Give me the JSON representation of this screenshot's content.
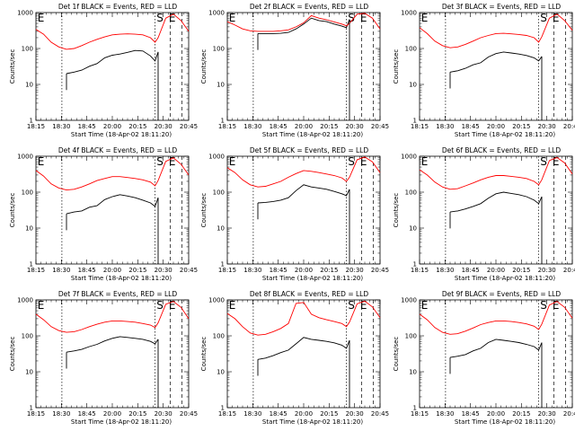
{
  "figure": {
    "xlabel": "Start Time (18-Apr-02 18:11:20)",
    "ylabel": "Counts/sec",
    "x_ticks": [
      "18:15",
      "18:30",
      "18:45",
      "20:00",
      "20:15",
      "20:30",
      "20:45"
    ],
    "y_ticks": [
      "1",
      "10",
      "100",
      "1000"
    ],
    "markers": {
      "e": "E",
      "s": "S"
    },
    "colors": {
      "events": "#000000",
      "lld": "#ff0000"
    }
  },
  "chart_data": [
    {
      "type": "line",
      "title": "Det 1f BLACK = Events, RED = LLD",
      "ylim": [
        1,
        1000
      ],
      "yscale": "log",
      "series": [
        {
          "name": "Events",
          "color": "#000000",
          "x": [
            0,
            0.05,
            0.1,
            0.2,
            0.25,
            0.3,
            0.35,
            0.4,
            0.45,
            0.5,
            0.55,
            0.6,
            0.65,
            0.7,
            0.75,
            0.78,
            0.8
          ],
          "values": [
            null,
            null,
            null,
            20,
            22,
            25,
            32,
            38,
            55,
            65,
            70,
            78,
            88,
            85,
            62,
            45,
            80
          ]
        },
        {
          "name": "LLD",
          "color": "#ff0000",
          "x": [
            0,
            0.05,
            0.1,
            0.15,
            0.2,
            0.25,
            0.3,
            0.35,
            0.4,
            0.45,
            0.5,
            0.55,
            0.6,
            0.65,
            0.7,
            0.75,
            0.78,
            0.8,
            0.85,
            0.9,
            0.95,
            1.0
          ],
          "values": [
            340,
            250,
            150,
            110,
            95,
            100,
            120,
            150,
            180,
            210,
            240,
            250,
            255,
            250,
            240,
            200,
            150,
            200,
            700,
            900,
            600,
            300
          ]
        }
      ]
    },
    {
      "type": "line",
      "title": "Det 2f BLACK = Events, RED = LLD",
      "ylim": [
        1,
        1000
      ],
      "yscale": "log",
      "series": [
        {
          "name": "Events",
          "color": "#000000",
          "x": [
            0,
            0.05,
            0.1,
            0.2,
            0.25,
            0.3,
            0.35,
            0.4,
            0.45,
            0.5,
            0.55,
            0.6,
            0.65,
            0.7,
            0.75,
            0.78,
            0.8
          ],
          "values": [
            null,
            null,
            null,
            260,
            260,
            260,
            265,
            280,
            350,
            480,
            700,
            600,
            560,
            480,
            420,
            380,
            650
          ]
        },
        {
          "name": "LLD",
          "color": "#ff0000",
          "x": [
            0,
            0.05,
            0.1,
            0.15,
            0.2,
            0.25,
            0.3,
            0.35,
            0.4,
            0.45,
            0.5,
            0.55,
            0.6,
            0.65,
            0.7,
            0.75,
            0.78,
            0.8,
            0.85,
            0.9,
            0.95,
            1.0
          ],
          "values": [
            560,
            450,
            350,
            310,
            300,
            300,
            300,
            310,
            330,
            400,
            520,
            820,
            700,
            630,
            550,
            480,
            430,
            500,
            900,
            950,
            700,
            350
          ]
        }
      ]
    },
    {
      "type": "line",
      "title": "Det 3f BLACK = Events, RED = LLD",
      "ylim": [
        1,
        1000
      ],
      "yscale": "log",
      "series": [
        {
          "name": "Events",
          "color": "#000000",
          "x": [
            0,
            0.05,
            0.1,
            0.2,
            0.25,
            0.3,
            0.35,
            0.4,
            0.45,
            0.5,
            0.55,
            0.6,
            0.65,
            0.7,
            0.75,
            0.78,
            0.8
          ],
          "values": [
            null,
            null,
            null,
            22,
            24,
            28,
            35,
            40,
            58,
            72,
            80,
            75,
            70,
            64,
            55,
            45,
            60
          ]
        },
        {
          "name": "LLD",
          "color": "#ff0000",
          "x": [
            0,
            0.05,
            0.1,
            0.15,
            0.2,
            0.25,
            0.3,
            0.35,
            0.4,
            0.45,
            0.5,
            0.55,
            0.6,
            0.65,
            0.7,
            0.75,
            0.78,
            0.8,
            0.85,
            0.9,
            0.95,
            1.0
          ],
          "values": [
            380,
            260,
            160,
            120,
            105,
            110,
            130,
            160,
            200,
            230,
            260,
            265,
            255,
            245,
            230,
            200,
            150,
            210,
            700,
            900,
            600,
            320
          ]
        }
      ]
    },
    {
      "type": "line",
      "title": "Det 4f BLACK = Events, RED = LLD",
      "ylim": [
        1,
        1000
      ],
      "yscale": "log",
      "series": [
        {
          "name": "Events",
          "color": "#000000",
          "x": [
            0,
            0.05,
            0.1,
            0.2,
            0.25,
            0.3,
            0.35,
            0.4,
            0.45,
            0.5,
            0.55,
            0.6,
            0.65,
            0.7,
            0.75,
            0.78,
            0.8
          ],
          "values": [
            null,
            null,
            null,
            25,
            28,
            30,
            38,
            42,
            62,
            75,
            85,
            78,
            70,
            60,
            50,
            40,
            70
          ]
        },
        {
          "name": "LLD",
          "color": "#ff0000",
          "x": [
            0,
            0.05,
            0.1,
            0.15,
            0.2,
            0.25,
            0.3,
            0.35,
            0.4,
            0.45,
            0.5,
            0.55,
            0.6,
            0.65,
            0.7,
            0.75,
            0.78,
            0.8,
            0.85,
            0.9,
            0.95,
            1.0
          ],
          "values": [
            400,
            280,
            170,
            130,
            115,
            120,
            140,
            170,
            210,
            240,
            270,
            270,
            255,
            240,
            220,
            190,
            150,
            210,
            720,
            900,
            600,
            300
          ]
        }
      ]
    },
    {
      "type": "line",
      "title": "Det 5f BLACK = Events, RED = LLD",
      "ylim": [
        1,
        1000
      ],
      "yscale": "log",
      "series": [
        {
          "name": "Events",
          "color": "#000000",
          "x": [
            0,
            0.05,
            0.1,
            0.2,
            0.25,
            0.3,
            0.35,
            0.4,
            0.45,
            0.5,
            0.55,
            0.6,
            0.65,
            0.7,
            0.75,
            0.78,
            0.8
          ],
          "values": [
            null,
            null,
            null,
            50,
            52,
            55,
            60,
            70,
            110,
            160,
            140,
            130,
            120,
            105,
            90,
            80,
            120
          ]
        },
        {
          "name": "LLD",
          "color": "#ff0000",
          "x": [
            0,
            0.05,
            0.1,
            0.15,
            0.2,
            0.25,
            0.3,
            0.35,
            0.4,
            0.45,
            0.5,
            0.55,
            0.6,
            0.65,
            0.7,
            0.75,
            0.78,
            0.8,
            0.85,
            0.9,
            0.95,
            1.0
          ],
          "values": [
            480,
            350,
            220,
            160,
            140,
            145,
            170,
            200,
            260,
            330,
            400,
            380,
            350,
            320,
            290,
            250,
            200,
            260,
            800,
            950,
            700,
            350
          ]
        }
      ]
    },
    {
      "type": "line",
      "title": "Det 6f BLACK = Events, RED = LLD",
      "ylim": [
        1,
        1000
      ],
      "yscale": "log",
      "series": [
        {
          "name": "Events",
          "color": "#000000",
          "x": [
            0,
            0.05,
            0.1,
            0.2,
            0.25,
            0.3,
            0.35,
            0.4,
            0.45,
            0.5,
            0.55,
            0.6,
            0.65,
            0.7,
            0.75,
            0.78,
            0.8
          ],
          "values": [
            null,
            null,
            null,
            28,
            30,
            34,
            40,
            48,
            68,
            90,
            100,
            92,
            85,
            75,
            60,
            48,
            75
          ]
        },
        {
          "name": "LLD",
          "color": "#ff0000",
          "x": [
            0,
            0.05,
            0.1,
            0.15,
            0.2,
            0.25,
            0.3,
            0.35,
            0.4,
            0.45,
            0.5,
            0.55,
            0.6,
            0.65,
            0.7,
            0.75,
            0.78,
            0.8,
            0.85,
            0.9,
            0.95,
            1.0
          ],
          "values": [
            420,
            300,
            190,
            140,
            120,
            125,
            150,
            180,
            220,
            260,
            290,
            290,
            275,
            260,
            240,
            200,
            160,
            220,
            760,
            920,
            650,
            320
          ]
        }
      ]
    },
    {
      "type": "line",
      "title": "Det 7f BLACK = Events, RED = LLD",
      "ylim": [
        1,
        1000
      ],
      "yscale": "log",
      "series": [
        {
          "name": "Events",
          "color": "#000000",
          "x": [
            0,
            0.05,
            0.1,
            0.2,
            0.25,
            0.3,
            0.35,
            0.4,
            0.45,
            0.5,
            0.55,
            0.6,
            0.65,
            0.7,
            0.75,
            0.78,
            0.8
          ],
          "values": [
            null,
            null,
            null,
            35,
            38,
            42,
            50,
            58,
            72,
            85,
            95,
            90,
            85,
            80,
            70,
            60,
            80
          ]
        },
        {
          "name": "LLD",
          "color": "#ff0000",
          "x": [
            0,
            0.05,
            0.1,
            0.15,
            0.2,
            0.25,
            0.3,
            0.35,
            0.4,
            0.45,
            0.5,
            0.55,
            0.6,
            0.65,
            0.7,
            0.75,
            0.78,
            0.8,
            0.85,
            0.9,
            0.95,
            1.0
          ],
          "values": [
            400,
            280,
            180,
            140,
            125,
            130,
            150,
            180,
            210,
            240,
            260,
            260,
            250,
            240,
            220,
            200,
            170,
            230,
            760,
            900,
            620,
            300
          ]
        }
      ]
    },
    {
      "type": "line",
      "title": "Det 8f BLACK = Events, RED = LLD",
      "ylim": [
        1,
        1000
      ],
      "yscale": "log",
      "series": [
        {
          "name": "Events",
          "color": "#000000",
          "x": [
            0,
            0.05,
            0.1,
            0.2,
            0.25,
            0.3,
            0.35,
            0.4,
            0.45,
            0.5,
            0.55,
            0.6,
            0.65,
            0.7,
            0.75,
            0.78,
            0.8
          ],
          "values": [
            null,
            null,
            null,
            22,
            24,
            28,
            34,
            40,
            60,
            90,
            80,
            75,
            70,
            64,
            55,
            45,
            75
          ]
        },
        {
          "name": "LLD",
          "color": "#ff0000",
          "x": [
            0,
            0.05,
            0.1,
            0.15,
            0.2,
            0.25,
            0.3,
            0.35,
            0.4,
            0.45,
            0.5,
            0.55,
            0.6,
            0.65,
            0.7,
            0.75,
            0.78,
            0.8,
            0.85,
            0.9,
            0.95,
            1.0
          ],
          "values": [
            420,
            300,
            180,
            120,
            105,
            110,
            130,
            160,
            220,
            800,
            850,
            400,
            320,
            280,
            250,
            220,
            180,
            240,
            780,
            920,
            640,
            320
          ]
        }
      ]
    },
    {
      "type": "line",
      "title": "Det 9f BLACK = Events, RED = LLD",
      "ylim": [
        1,
        1000
      ],
      "yscale": "log",
      "series": [
        {
          "name": "Events",
          "color": "#000000",
          "x": [
            0,
            0.05,
            0.1,
            0.2,
            0.25,
            0.3,
            0.35,
            0.4,
            0.45,
            0.5,
            0.55,
            0.6,
            0.65,
            0.7,
            0.75,
            0.78,
            0.8
          ],
          "values": [
            null,
            null,
            null,
            25,
            27,
            30,
            38,
            45,
            65,
            80,
            75,
            70,
            65,
            58,
            50,
            40,
            65
          ]
        },
        {
          "name": "LLD",
          "color": "#ff0000",
          "x": [
            0,
            0.05,
            0.1,
            0.15,
            0.2,
            0.25,
            0.3,
            0.35,
            0.4,
            0.45,
            0.5,
            0.55,
            0.6,
            0.65,
            0.7,
            0.75,
            0.78,
            0.8,
            0.85,
            0.9,
            0.95,
            1.0
          ],
          "values": [
            400,
            280,
            170,
            125,
            110,
            115,
            135,
            165,
            205,
            235,
            260,
            260,
            250,
            235,
            215,
            185,
            150,
            210,
            720,
            900,
            620,
            310
          ]
        }
      ]
    }
  ]
}
